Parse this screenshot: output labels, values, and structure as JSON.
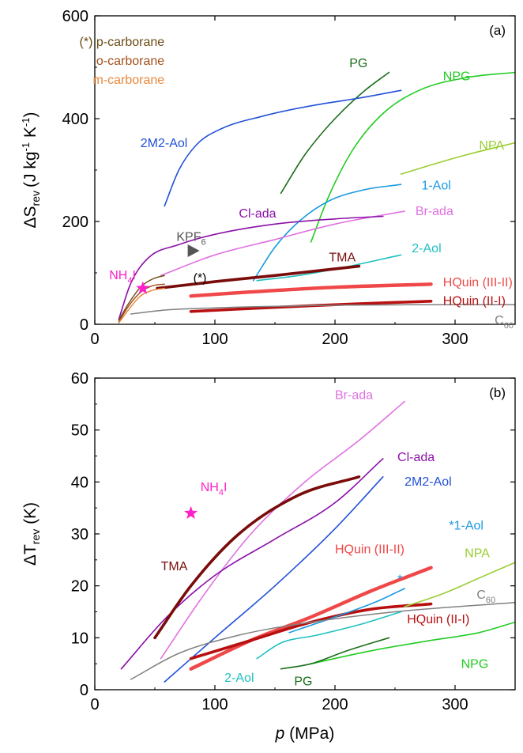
{
  "chart_data": [
    {
      "id": "a",
      "type": "line",
      "panel_label": "(a)",
      "ylabel_main": "ΔS",
      "ylabel_sub": "rev",
      "ylabel_units": "(J kg",
      "ylabel_exp1": "-1",
      "ylabel_mid": " K",
      "ylabel_exp2": "-1",
      "ylabel_close": ")",
      "xlim": [
        0,
        350
      ],
      "ylim": [
        0,
        600
      ],
      "xticks": [
        0,
        100,
        200,
        300
      ],
      "yticks": [
        0,
        200,
        400,
        600
      ],
      "legend_note": [
        {
          "text": "(*) p-carborane",
          "color": "#6b4a12"
        },
        {
          "text": "o-carborane",
          "color": "#a0501a"
        },
        {
          "text": "m-carborane",
          "color": "#e8873a"
        }
      ],
      "series": [
        {
          "name": "PG",
          "color": "#1a6e1a",
          "width": 1.6,
          "points": [
            [
              155,
              255
            ],
            [
              175,
              330
            ],
            [
              200,
              400
            ],
            [
              225,
              455
            ],
            [
              245,
              490
            ]
          ]
        },
        {
          "name": "NPG",
          "color": "#22cc22",
          "width": 1.6,
          "points": [
            [
              180,
              160
            ],
            [
              195,
              250
            ],
            [
              215,
              340
            ],
            [
              240,
              410
            ],
            [
              270,
              455
            ],
            [
              310,
              480
            ],
            [
              350,
              490
            ]
          ]
        },
        {
          "name": "2M2-Aol",
          "color": "#2050d8",
          "width": 1.6,
          "points": [
            [
              58,
              230
            ],
            [
              70,
              300
            ],
            [
              85,
              350
            ],
            [
              105,
              380
            ],
            [
              140,
              405
            ],
            [
              180,
              425
            ],
            [
              220,
              440
            ],
            [
              255,
              455
            ]
          ]
        },
        {
          "name": "NPA",
          "color": "#9acd32",
          "width": 1.6,
          "points": [
            [
              255,
              292
            ],
            [
              280,
              310
            ],
            [
              310,
              330
            ],
            [
              350,
              353
            ]
          ]
        },
        {
          "name": "1-Aol",
          "color": "#1a9ae0",
          "width": 1.6,
          "points": [
            [
              132,
              85
            ],
            [
              150,
              150
            ],
            [
              170,
              200
            ],
            [
              195,
              240
            ],
            [
              225,
              262
            ],
            [
              255,
              272
            ]
          ]
        },
        {
          "name": "Br-ada",
          "color": "#e070e0",
          "width": 1.6,
          "points": [
            [
              55,
              95
            ],
            [
              100,
              135
            ],
            [
              150,
              165
            ],
            [
              200,
              195
            ],
            [
              258,
              220
            ]
          ]
        },
        {
          "name": "Cl-ada",
          "color": "#8b10a8",
          "width": 1.6,
          "points": [
            [
              20,
              10
            ],
            [
              30,
              80
            ],
            [
              45,
              130
            ],
            [
              70,
              155
            ],
            [
              100,
              175
            ],
            [
              150,
              195
            ],
            [
              200,
              205
            ],
            [
              240,
              210
            ]
          ]
        },
        {
          "name": "2-Aol",
          "color": "#20c0c0",
          "width": 1.6,
          "points": [
            [
              135,
              85
            ],
            [
              170,
              95
            ],
            [
              210,
              112
            ],
            [
              255,
              135
            ]
          ]
        },
        {
          "name": "TMA",
          "color": "#7a0c0c",
          "width": 3.6,
          "points": [
            [
              52,
              70
            ],
            [
              100,
              83
            ],
            [
              150,
              95
            ],
            [
              220,
              113
            ]
          ]
        },
        {
          "name": "HQuin (III-II)",
          "color": "#f04848",
          "width": 4.4,
          "points": [
            [
              80,
              55
            ],
            [
              130,
              63
            ],
            [
              200,
              72
            ],
            [
              280,
              78
            ]
          ]
        },
        {
          "name": "HQuin (II-I)",
          "color": "#b81010",
          "width": 3.6,
          "points": [
            [
              80,
              25
            ],
            [
              150,
              33
            ],
            [
              220,
              40
            ],
            [
              280,
              45
            ]
          ]
        },
        {
          "name": "C60",
          "color": "#808080",
          "width": 1.5,
          "points": [
            [
              30,
              20
            ],
            [
              60,
              28
            ],
            [
              100,
              32
            ],
            [
              150,
              35
            ],
            [
              200,
              37
            ],
            [
              260,
              38
            ],
            [
              350,
              38
            ]
          ]
        },
        {
          "name": "p-carborane",
          "color": "#6b4a12",
          "width": 1.4,
          "points": [
            [
              20,
              8
            ],
            [
              28,
              40
            ],
            [
              38,
              72
            ],
            [
              48,
              88
            ],
            [
              58,
              95
            ]
          ]
        },
        {
          "name": "o-carborane",
          "color": "#a0501a",
          "width": 1.4,
          "points": [
            [
              20,
              5
            ],
            [
              28,
              35
            ],
            [
              38,
              62
            ],
            [
              48,
              75
            ],
            [
              58,
              78
            ]
          ]
        },
        {
          "name": "m-carborane",
          "color": "#e8873a",
          "width": 1.4,
          "points": [
            [
              20,
              3
            ],
            [
              28,
              28
            ],
            [
              38,
              55
            ],
            [
              48,
              66
            ],
            [
              58,
              70
            ]
          ]
        }
      ],
      "markers": [
        {
          "name": "NH4I",
          "shape": "star",
          "color": "#ff20c8",
          "x": 40,
          "y": 70
        },
        {
          "name": "KPF6",
          "shape": "triangle-right",
          "color": "#555555",
          "x": 82,
          "y": 143
        }
      ],
      "labels": [
        {
          "text": "PG",
          "color": "#1a6e1a",
          "x": 212,
          "y": 500
        },
        {
          "text": "NPG",
          "color": "#22cc22",
          "x": 290,
          "y": 475
        },
        {
          "text": "2M2-Aol",
          "color": "#2050d8",
          "x": 38,
          "y": 345
        },
        {
          "text": "NPA",
          "color": "#9acd32",
          "x": 320,
          "y": 340
        },
        {
          "text": "1-Aol",
          "color": "#1a9ae0",
          "x": 272,
          "y": 262
        },
        {
          "text": "Br-ada",
          "color": "#e070e0",
          "x": 267,
          "y": 212
        },
        {
          "text": "Cl-ada",
          "color": "#8b10a8",
          "x": 120,
          "y": 208
        },
        {
          "text": "2-Aol",
          "color": "#20c0c0",
          "x": 264,
          "y": 140
        },
        {
          "text": "TMA",
          "color": "#7a0c0c",
          "x": 195,
          "y": 122
        },
        {
          "text": "HQuin (III-II)",
          "color": "#f04848",
          "x": 290,
          "y": 74
        },
        {
          "text": "HQuin (II-I)",
          "color": "#b81010",
          "x": 290,
          "y": 38
        },
        {
          "text": "(*)",
          "color": "#000000",
          "x": 82,
          "y": 82
        },
        {
          "text": "C60",
          "color": "#808080",
          "x": 333,
          "y": 0,
          "rich": {
            "base": "C",
            "sub": "60"
          }
        },
        {
          "text": "NH4I",
          "color": "#ff20c8",
          "x": 12,
          "y": 88,
          "rich": {
            "base": "NH",
            "sub": "4",
            "tail": "I"
          }
        },
        {
          "text": "KPF6",
          "color": "#555555",
          "x": 68,
          "y": 162,
          "rich": {
            "base": "KPF",
            "sub": "6"
          }
        }
      ]
    },
    {
      "id": "b",
      "type": "line",
      "panel_label": "(b)",
      "ylabel_main": "ΔT",
      "ylabel_sub": "rev",
      "ylabel_units": " (K)",
      "xlabel_main": "p",
      "xlabel_units": " (MPa)",
      "xlim": [
        0,
        350
      ],
      "ylim": [
        0,
        60
      ],
      "xticks": [
        0,
        100,
        200,
        300
      ],
      "yticks": [
        0,
        10,
        20,
        30,
        40,
        50,
        60
      ],
      "series": [
        {
          "name": "Br-ada",
          "color": "#e070e0",
          "width": 1.6,
          "points": [
            [
              55,
              6
            ],
            [
              90,
              18
            ],
            [
              130,
              30
            ],
            [
              175,
              40
            ],
            [
              220,
              48
            ],
            [
              258,
              55.5
            ]
          ]
        },
        {
          "name": "Cl-ada",
          "color": "#8b10a8",
          "width": 1.6,
          "points": [
            [
              22,
              4
            ],
            [
              60,
              14
            ],
            [
              100,
              22
            ],
            [
              150,
              29
            ],
            [
              200,
              36
            ],
            [
              240,
              44.5
            ]
          ]
        },
        {
          "name": "2M2-Aol",
          "color": "#2050d8",
          "width": 1.6,
          "points": [
            [
              58,
              1.5
            ],
            [
              100,
              10
            ],
            [
              150,
              20
            ],
            [
              200,
              31
            ],
            [
              240,
              41
            ]
          ]
        },
        {
          "name": "TMA",
          "color": "#7a0c0c",
          "width": 3.6,
          "points": [
            [
              50,
              10
            ],
            [
              80,
              20
            ],
            [
              120,
              30
            ],
            [
              170,
              37.5
            ],
            [
              220,
              41
            ]
          ]
        },
        {
          "name": "HQuin (III-II)",
          "color": "#f04848",
          "width": 4.4,
          "points": [
            [
              80,
              4
            ],
            [
              130,
              9.5
            ],
            [
              180,
              14
            ],
            [
              230,
              19
            ],
            [
              280,
              23.5
            ]
          ]
        },
        {
          "name": "HQuin (II-I)",
          "color": "#b81010",
          "width": 3.6,
          "points": [
            [
              80,
              6
            ],
            [
              130,
              9.5
            ],
            [
              180,
              13
            ],
            [
              230,
              15.5
            ],
            [
              280,
              16.5
            ]
          ]
        },
        {
          "name": "1-Aol",
          "color": "#1a9ae0",
          "width": 1.6,
          "points": [
            [
              162,
              11
            ],
            [
              200,
              14
            ],
            [
              235,
              17
            ],
            [
              258,
              19.5
            ]
          ]
        },
        {
          "name": "NPA",
          "color": "#9acd32",
          "width": 1.6,
          "points": [
            [
              258,
              16
            ],
            [
              290,
              18.5
            ],
            [
              320,
              21.5
            ],
            [
              350,
              24.5
            ]
          ]
        },
        {
          "name": "C60",
          "color": "#808080",
          "width": 1.5,
          "points": [
            [
              30,
              2
            ],
            [
              70,
              7
            ],
            [
              120,
              10.5
            ],
            [
              180,
              13
            ],
            [
              250,
              15
            ],
            [
              350,
              16.8
            ]
          ]
        },
        {
          "name": "2-Aol",
          "color": "#20c0c0",
          "width": 1.6,
          "points": [
            [
              135,
              6
            ],
            [
              155,
              9
            ],
            [
              185,
              10.5
            ],
            [
              220,
              12.5
            ],
            [
              255,
              15
            ]
          ]
        },
        {
          "name": "NPG",
          "color": "#22cc22",
          "width": 1.6,
          "points": [
            [
              180,
              5
            ],
            [
              230,
              7.5
            ],
            [
              280,
              9.5
            ],
            [
              320,
              11
            ],
            [
              350,
              13
            ]
          ]
        },
        {
          "name": "PG",
          "color": "#1a6e1a",
          "width": 1.6,
          "points": [
            [
              155,
              4
            ],
            [
              180,
              5
            ],
            [
              210,
              7.5
            ],
            [
              245,
              10
            ]
          ]
        }
      ],
      "markers": [
        {
          "name": "NH4I",
          "shape": "star",
          "color": "#ff20c8",
          "x": 80,
          "y": 34
        }
      ],
      "labels": [
        {
          "text": "Br-ada",
          "color": "#e070e0",
          "x": 200,
          "y": 56
        },
        {
          "text": "Cl-ada",
          "color": "#8b10a8",
          "x": 252,
          "y": 44
        },
        {
          "text": "2M2-Aol",
          "color": "#2050d8",
          "x": 258,
          "y": 39.3
        },
        {
          "text": "*1-Aol",
          "color": "#1a9ae0",
          "x": 295,
          "y": 30.8
        },
        {
          "text": "TMA",
          "color": "#7a0c0c",
          "x": 55,
          "y": 23
        },
        {
          "text": "HQuin (III-II)",
          "color": "#f04848",
          "x": 200,
          "y": 26.3
        },
        {
          "text": "NPA",
          "color": "#9acd32",
          "x": 308,
          "y": 25.5
        },
        {
          "text": "C60",
          "color": "#808080",
          "x": 318,
          "y": 17.5,
          "rich": {
            "base": "C",
            "sub": "60"
          }
        },
        {
          "text": "*",
          "color": "#1a9ae0",
          "x": 252,
          "y": 20.5
        },
        {
          "text": "HQuin (II-I)",
          "color": "#b81010",
          "x": 260,
          "y": 12.8
        },
        {
          "text": "NPG",
          "color": "#22cc22",
          "x": 305,
          "y": 4.2
        },
        {
          "text": "2-Aol",
          "color": "#20c0c0",
          "x": 108,
          "y": 1.5
        },
        {
          "text": "PG",
          "color": "#1a6e1a",
          "x": 166,
          "y": 0.8
        },
        {
          "text": "NH4I",
          "color": "#ff20c8",
          "x": 88,
          "y": 38.2,
          "rich": {
            "base": "NH",
            "sub": "4",
            "tail": "I"
          }
        }
      ]
    }
  ]
}
